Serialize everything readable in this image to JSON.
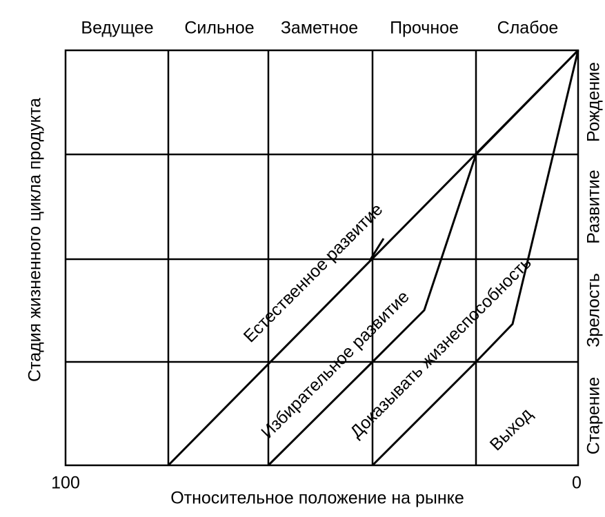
{
  "columns": [
    "Ведущее",
    "Сильное",
    "Заметное",
    "Прочное",
    "Слабое"
  ],
  "rows": [
    "Рождение",
    "Развитие",
    "Зрелость",
    "Старение"
  ],
  "y_axis_label": "Стадия жизненного цикла продукта",
  "x_axis_label": "Относительное положение на рынке",
  "x_axis_left": "100",
  "x_axis_right": "0",
  "strategies": [
    "Естественное развитие",
    "Избирательное развитие",
    "Доказывать жизнеспособность",
    "Выход"
  ]
}
